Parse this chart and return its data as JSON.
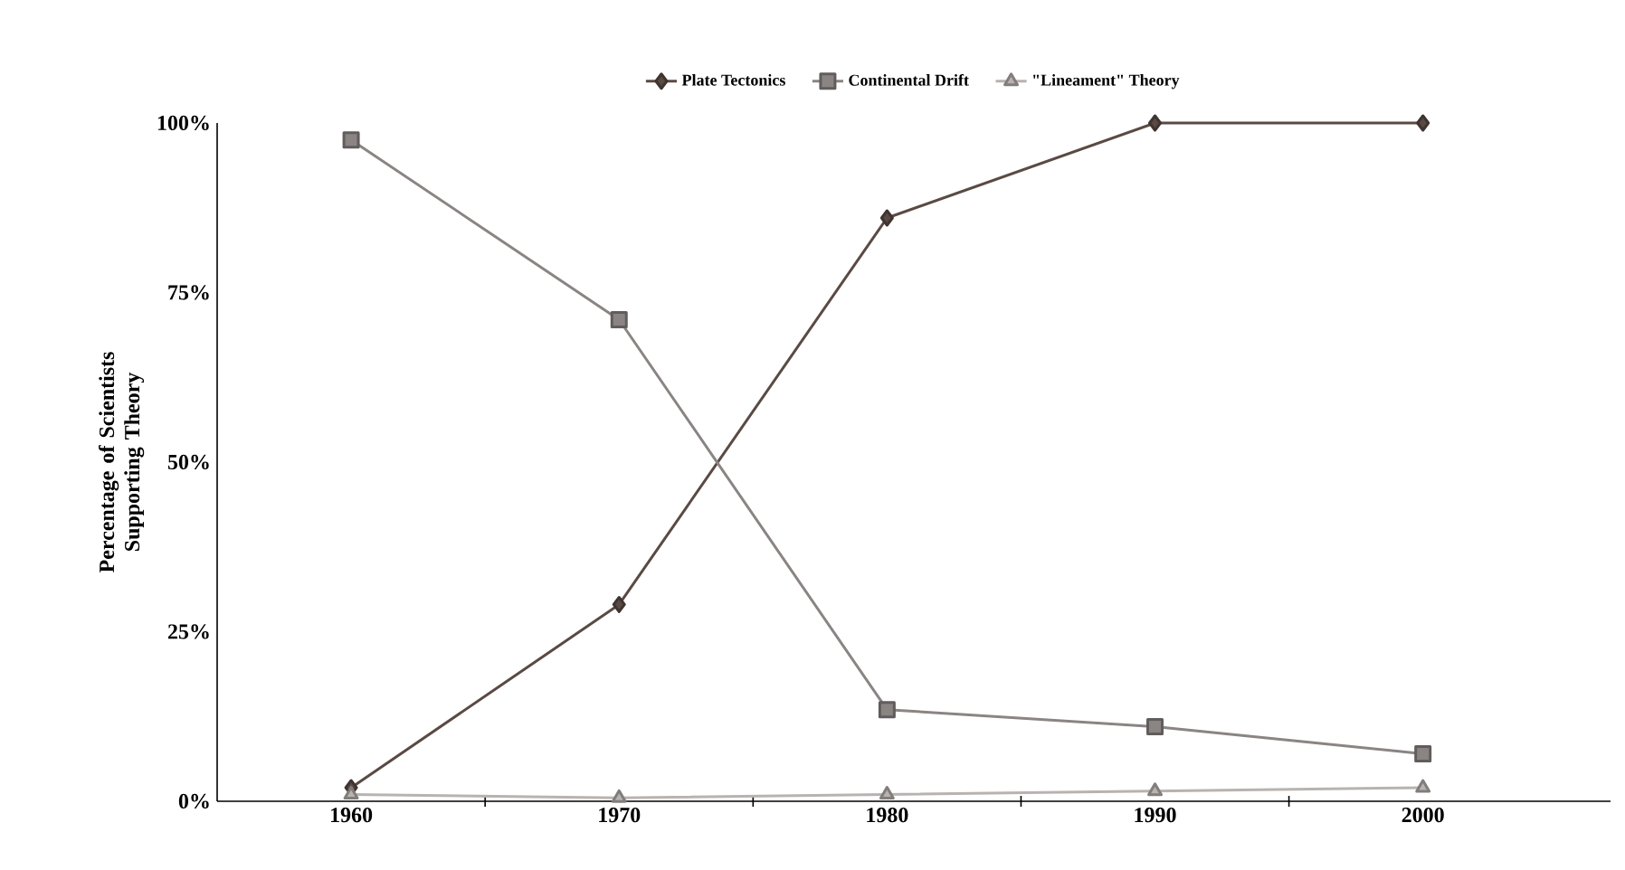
{
  "chart_data": {
    "type": "line",
    "ylabel": "Percentage of Scientists Supporting Theory",
    "categories": [
      "1960",
      "1970",
      "1980",
      "1990",
      "2000"
    ],
    "series": [
      {
        "name": "Plate Tectonics",
        "color": "#5a4a44",
        "marker": "diamond",
        "values": [
          2,
          29,
          86,
          100,
          100
        ]
      },
      {
        "name": "Continental Drift",
        "color": "#8a8583",
        "marker": "square",
        "values": [
          97.5,
          71,
          13.5,
          11,
          7
        ]
      },
      {
        "name": "\"Lineament\" Theory",
        "color": "#b8b3b0",
        "marker": "triangle",
        "values": [
          1,
          0.5,
          1,
          1.5,
          2
        ]
      }
    ],
    "ylim": [
      0,
      100
    ],
    "yticks": [
      {
        "value": 0,
        "label": "0%"
      },
      {
        "value": 25,
        "label": "25%"
      },
      {
        "value": 50,
        "label": "50%"
      },
      {
        "value": 75,
        "label": "75%"
      },
      {
        "value": 100,
        "label": "100%"
      }
    ],
    "grid": false,
    "legend": "top",
    "line_style": "solid"
  }
}
